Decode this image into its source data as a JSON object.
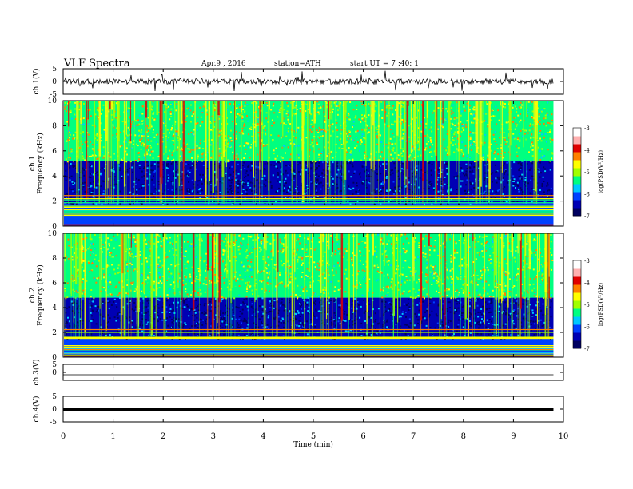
{
  "header": {
    "title": "VLF  Spectra",
    "date": "Apr.9  , 2016",
    "station": "station=ATH",
    "start": "start  UT  =   7 :40: 1"
  },
  "chart_data": [
    {
      "type": "line",
      "panel": "ch1-waveform",
      "ylabel": "ch.1(V)",
      "ylim": [
        -5,
        5
      ],
      "yticks": [
        "5",
        "0",
        "-5"
      ],
      "x_range_min": [
        0,
        9.8
      ],
      "baseline": 0,
      "color": "#000000"
    },
    {
      "type": "heatmap",
      "panel": "ch1-spectrogram",
      "ylabel": "ch.1\nFrequency (kHz)",
      "ylim": [
        0,
        10
      ],
      "yticks": [
        "0",
        "2",
        "4",
        "6",
        "8",
        "10"
      ],
      "x_range_min": [
        0,
        9.8
      ],
      "colorbar": {
        "label": "log(PSD(V²/Hz)",
        "ticks": [
          "-3",
          "-4",
          "-5",
          "-6",
          "-7"
        ],
        "range": [
          -7,
          -3
        ]
      },
      "bands_khz": [
        {
          "from": 0,
          "to": 1.8,
          "level": "horizontal lines"
        },
        {
          "from": 1.8,
          "to": 5.2,
          "level": "low (-6.5)"
        },
        {
          "from": 5.2,
          "to": 10,
          "level": "mid (-5.5)"
        }
      ]
    },
    {
      "type": "heatmap",
      "panel": "ch2-spectrogram",
      "ylabel": "ch.2\nFrequency (kHz)",
      "ylim": [
        0,
        10
      ],
      "yticks": [
        "0",
        "2",
        "4",
        "6",
        "8",
        "10"
      ],
      "x_range_min": [
        0,
        9.8
      ],
      "colorbar": {
        "label": "log(PSD(V²/Hz)",
        "ticks": [
          "-3",
          "-4",
          "-5",
          "-6",
          "-7"
        ],
        "range": [
          -7,
          -3
        ]
      },
      "bands_khz": [
        {
          "from": 0,
          "to": 1.5,
          "level": "horizontal lines"
        },
        {
          "from": 1.5,
          "to": 4.8,
          "level": "low (-6.5)"
        },
        {
          "from": 4.8,
          "to": 10,
          "level": "mid (-5.5)"
        }
      ]
    },
    {
      "type": "line",
      "panel": "ch3-waveform",
      "ylabel": "ch.3(V)",
      "ylim": [
        -5,
        5
      ],
      "yticks": [
        "5",
        "0"
      ],
      "x_range_min": [
        0,
        9.8
      ],
      "baseline": 0,
      "color": "#000000"
    },
    {
      "type": "line",
      "panel": "ch4-waveform",
      "ylabel": "ch.4(V)",
      "ylim": [
        -5,
        5
      ],
      "yticks": [
        "5",
        "0",
        "-5"
      ],
      "x_range_min": [
        0,
        9.8
      ],
      "baseline": 0,
      "color": "#000000"
    }
  ],
  "xaxis": {
    "label": "Time  (min)",
    "ticks": [
      0,
      1,
      2,
      3,
      4,
      5,
      6,
      7,
      8,
      9,
      10
    ],
    "range": [
      0,
      10
    ]
  },
  "colormap": [
    "#000060",
    "#0000b4",
    "#0040ff",
    "#00c8ff",
    "#00ff80",
    "#a0ff00",
    "#ffff00",
    "#ff8000",
    "#e00000",
    "#ffb0b0",
    "#ffffff"
  ]
}
